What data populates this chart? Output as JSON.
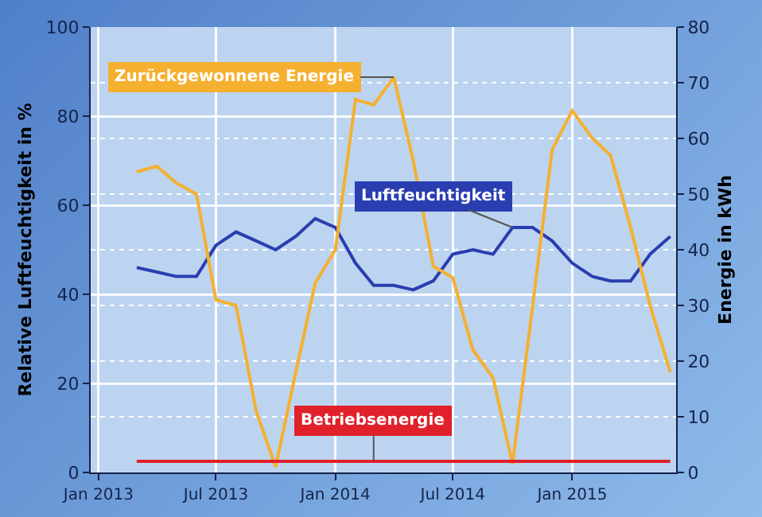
{
  "chart_data": {
    "type": "line",
    "ylabel": "Relative Luftfeuchtigkeit in %",
    "y2label": "Energie in kWh",
    "x": [
      "2013-03",
      "2013-04",
      "2013-05",
      "2013-06",
      "2013-07",
      "2013-08",
      "2013-09",
      "2013-10",
      "2013-11",
      "2013-12",
      "2014-01",
      "2014-02",
      "2014-03",
      "2014-04",
      "2014-05",
      "2014-06",
      "2014-07",
      "2014-08",
      "2014-09",
      "2014-10",
      "2014-11",
      "2014-12",
      "2015-01",
      "2015-02",
      "2015-03",
      "2015-04",
      "2015-05",
      "2015-06"
    ],
    "series": [
      {
        "name": "Luftfeuchtigkeit",
        "color": "#2a3eb1",
        "values": [
          46,
          45,
          44,
          44,
          51,
          54,
          52,
          50,
          53,
          57,
          55,
          47,
          42,
          42,
          41,
          43,
          49,
          50,
          49,
          55,
          55,
          52,
          47,
          44,
          43,
          43,
          49,
          53
        ]
      },
      {
        "name": "Zurückgewonnene Energie",
        "color": "#f5b030",
        "axis": "y2",
        "values": [
          54,
          55,
          52,
          50,
          31,
          30,
          11,
          1,
          18,
          34,
          40,
          67,
          66,
          71,
          56,
          37,
          35,
          22,
          17,
          1.5,
          30,
          58,
          65,
          60,
          57,
          44,
          30,
          18
        ]
      },
      {
        "name": "Betriebsenergie",
        "color": "#e0202a",
        "axis": "y2",
        "values": [
          2,
          2,
          2,
          2,
          2,
          2,
          2,
          2,
          2,
          2,
          2,
          2,
          2,
          2,
          2,
          2,
          2,
          2,
          2,
          2,
          2,
          2,
          2,
          2,
          2,
          2,
          2,
          2
        ]
      }
    ],
    "xlim": [
      "2012-12-20",
      "2015-06-10"
    ],
    "xticks": [
      {
        "value": "2013-01-01",
        "label": "Jan 2013"
      },
      {
        "value": "2013-07-01",
        "label": "Jul 2013"
      },
      {
        "value": "2014-01-01",
        "label": "Jan 2014"
      },
      {
        "value": "2014-07-01",
        "label": "Jul 2014"
      },
      {
        "value": "2015-01-01",
        "label": "Jan 2015"
      }
    ],
    "ylim": [
      0,
      100
    ],
    "yticks": [
      0,
      20,
      40,
      60,
      80,
      100
    ],
    "y2lim": [
      0,
      80
    ],
    "y2ticks": [
      0,
      10,
      20,
      30,
      40,
      50,
      60,
      70,
      80
    ],
    "grid": true,
    "legend": false,
    "marker": "none",
    "line_style": "solid"
  }
}
